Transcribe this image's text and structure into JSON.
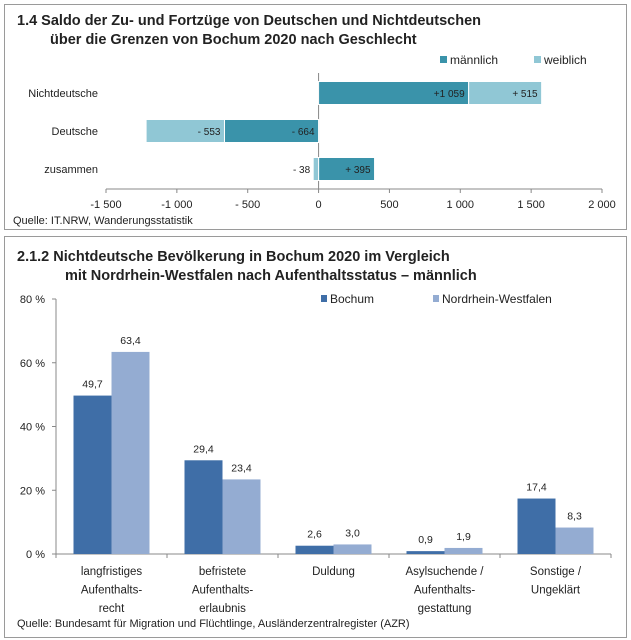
{
  "chart_data": [
    {
      "type": "bar",
      "orientation": "horizontal",
      "stacked": true,
      "title_line1": "1.4  Saldo der Zu- und Fortzüge von Deutschen und Nichtdeutschen",
      "title_line2": "über die Grenzen von Bochum 2020 nach Geschlecht",
      "categories": [
        "Nichtdeutsche",
        "Deutsche",
        "zusammen"
      ],
      "series": [
        {
          "name": "männlich",
          "color": "#3a93aa",
          "values": [
            1059,
            -664,
            395
          ],
          "labels": [
            "+1 059",
            "- 664",
            "+ 395"
          ]
        },
        {
          "name": "weiblich",
          "color": "#90c7d5",
          "values": [
            515,
            -553,
            -38
          ],
          "labels": [
            "+ 515",
            "- 553",
            "- 38"
          ]
        }
      ],
      "xlim": [
        -1500,
        2000
      ],
      "xticks": [
        -1500,
        -1000,
        -500,
        0,
        500,
        1000,
        1500,
        2000
      ],
      "xtick_labels": [
        "-1 500",
        "-1 000",
        "- 500",
        "0",
        "500",
        "1 000",
        "1 500",
        "2 000"
      ],
      "legend": "top-right",
      "source": "Quelle: IT.NRW, Wanderungsstatistik"
    },
    {
      "type": "bar",
      "title_line1": "2.1.2  Nichtdeutsche Bevölkerung in Bochum 2020 im Vergleich",
      "title_line2": "mit Nordrhein-Westfalen nach Aufenthaltsstatus – männlich",
      "categories": [
        [
          "langfristiges",
          "Aufenthalts-",
          "recht"
        ],
        [
          "befristete",
          "Aufenthalts-",
          "erlaubnis"
        ],
        [
          "Duldung"
        ],
        [
          "Asylsuchende /",
          "Aufenthalts-",
          "gestattung"
        ],
        [
          "Sonstige /",
          "Ungeklärt"
        ]
      ],
      "series": [
        {
          "name": "Bochum",
          "color": "#3f6ea7",
          "values": [
            49.7,
            29.4,
            2.6,
            0.9,
            17.4
          ],
          "labels": [
            "49,7",
            "29,4",
            "2,6",
            "0,9",
            "17,4"
          ]
        },
        {
          "name": "Nordrhein-Westfalen",
          "color": "#94acd2",
          "values": [
            63.4,
            23.4,
            3.0,
            1.9,
            8.3
          ],
          "labels": [
            "63,4",
            "23,4",
            "3,0",
            "1,9",
            "8,3"
          ]
        }
      ],
      "ylim": [
        0,
        80
      ],
      "yticks": [
        0,
        20,
        40,
        60,
        80
      ],
      "ytick_labels": [
        "0 %",
        "20 %",
        "40 %",
        "60 %",
        "80 %"
      ],
      "legend": "top-right",
      "source": "Quelle: Bundesamt für Migration und Flüchtlinge, Ausländerzentralregister (AZR)"
    }
  ]
}
